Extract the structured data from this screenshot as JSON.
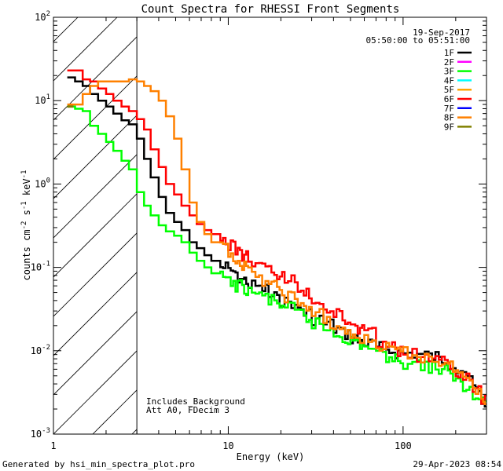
{
  "chart_data": {
    "type": "line",
    "title": "Count Spectra for RHESSI Front Segments",
    "xlabel": "Energy (keV)",
    "ylabel_parts": [
      "counts cm",
      "-2",
      " s",
      "-1",
      " keV",
      "-1"
    ],
    "xscale": "log",
    "yscale": "log",
    "xlim": [
      1,
      300
    ],
    "ylim": [
      0.001,
      100
    ],
    "xticks": [
      {
        "v": 1,
        "label": "1"
      },
      {
        "v": 10,
        "label": "10"
      },
      {
        "v": 100,
        "label": "100"
      }
    ],
    "yticks": [
      {
        "v": 0.001,
        "base": "10",
        "exp": "-3"
      },
      {
        "v": 0.01,
        "base": "10",
        "exp": "-2"
      },
      {
        "v": 0.1,
        "base": "10",
        "exp": "-1"
      },
      {
        "v": 1,
        "base": "10",
        "exp": "0"
      },
      {
        "v": 10,
        "base": "10",
        "exp": "1"
      },
      {
        "v": 100,
        "base": "10",
        "exp": "2"
      }
    ],
    "attenuator_cutoff_kev": 3,
    "date": "19-Sep-2017",
    "time_range": "05:50:00 to 05:51:00",
    "annotations": [
      "Includes_Background",
      "Att A0, FDecim 3"
    ],
    "legend": [
      {
        "name": "1F",
        "color": "#000000"
      },
      {
        "name": "2F",
        "color": "#ff00ff"
      },
      {
        "name": "3F",
        "color": "#00ff00"
      },
      {
        "name": "4F",
        "color": "#00ffff"
      },
      {
        "name": "5F",
        "color": "#ffa500"
      },
      {
        "name": "6F",
        "color": "#ff0000"
      },
      {
        "name": "7F",
        "color": "#0000ff"
      },
      {
        "name": "8F",
        "color": "#ff8000"
      },
      {
        "name": "9F",
        "color": "#808000"
      }
    ],
    "series": [
      {
        "name": "1F",
        "color": "#000000",
        "x": [
          1.2,
          1.33,
          1.47,
          1.62,
          1.8,
          2.0,
          2.2,
          2.45,
          2.7,
          3.0,
          3.3,
          3.6,
          4.0,
          4.4,
          4.9,
          5.4,
          6.0,
          6.6,
          7.3,
          8.0,
          9.0,
          10,
          11,
          12,
          13,
          15,
          17,
          19,
          21,
          24,
          27,
          30,
          35,
          40,
          45,
          50,
          55,
          60,
          70,
          80,
          90,
          100,
          120,
          140,
          160,
          180,
          200,
          220,
          250,
          280,
          300
        ],
        "y": [
          19,
          17,
          15,
          12,
          10,
          8.5,
          7,
          5.8,
          5.2,
          3.5,
          2.0,
          1.2,
          0.7,
          0.45,
          0.35,
          0.28,
          0.2,
          0.17,
          0.14,
          0.12,
          0.1,
          0.09,
          0.075,
          0.07,
          0.06,
          0.055,
          0.045,
          0.04,
          0.038,
          0.032,
          0.028,
          0.024,
          0.021,
          0.018,
          0.016,
          0.014,
          0.013,
          0.012,
          0.011,
          0.01,
          0.0095,
          0.0093,
          0.009,
          0.0085,
          0.0078,
          0.007,
          0.0058,
          0.0047,
          0.0035,
          0.0025,
          0.0022
        ]
      },
      {
        "name": "3F",
        "color": "#00ff00",
        "x": [
          1.2,
          1.33,
          1.47,
          1.62,
          1.8,
          2.0,
          2.2,
          2.45,
          2.7,
          3.0,
          3.3,
          3.6,
          4.0,
          4.4,
          4.9,
          5.4,
          6.0,
          6.6,
          7.3,
          8.0,
          9.0,
          10,
          11,
          12,
          13,
          15,
          17,
          19,
          21,
          24,
          27,
          30,
          35,
          40,
          45,
          50,
          55,
          60,
          70,
          80,
          90,
          100,
          120,
          140,
          160,
          180,
          200,
          220,
          250,
          280,
          300
        ],
        "y": [
          8.5,
          8.0,
          7.5,
          5.0,
          4.0,
          3.2,
          2.5,
          1.9,
          1.5,
          0.8,
          0.55,
          0.42,
          0.32,
          0.27,
          0.24,
          0.2,
          0.15,
          0.12,
          0.1,
          0.085,
          0.075,
          0.065,
          0.06,
          0.055,
          0.05,
          0.045,
          0.04,
          0.036,
          0.032,
          0.028,
          0.024,
          0.021,
          0.018,
          0.016,
          0.014,
          0.013,
          0.012,
          0.011,
          0.009,
          0.0085,
          0.0078,
          0.0072,
          0.0068,
          0.0063,
          0.0058,
          0.005,
          0.0043,
          0.0036,
          0.0031,
          0.0026,
          0.0023
        ]
      },
      {
        "name": "6F",
        "color": "#ff0000",
        "x": [
          1.2,
          1.33,
          1.47,
          1.62,
          1.8,
          2.0,
          2.2,
          2.45,
          2.7,
          3.0,
          3.3,
          3.6,
          4.0,
          4.4,
          4.9,
          5.4,
          6.0,
          6.6,
          7.3,
          8.0,
          9.0,
          10,
          11,
          12,
          13,
          15,
          17,
          19,
          21,
          24,
          27,
          30,
          35,
          40,
          45,
          50,
          55,
          60,
          70,
          80,
          90,
          100,
          120,
          140,
          160,
          180,
          200,
          220,
          250,
          280,
          300
        ],
        "y": [
          23,
          23,
          18,
          17,
          14,
          12,
          10,
          8.5,
          7.5,
          6.0,
          4.5,
          2.6,
          1.6,
          1.0,
          0.75,
          0.55,
          0.42,
          0.33,
          0.28,
          0.25,
          0.21,
          0.18,
          0.16,
          0.14,
          0.12,
          0.1,
          0.09,
          0.08,
          0.07,
          0.06,
          0.05,
          0.04,
          0.032,
          0.027,
          0.023,
          0.02,
          0.018,
          0.016,
          0.013,
          0.011,
          0.0098,
          0.009,
          0.0083,
          0.0078,
          0.0072,
          0.0065,
          0.0055,
          0.0045,
          0.0035,
          0.0027,
          0.0024
        ]
      },
      {
        "name": "8F",
        "color": "#ff8000",
        "x": [
          1.2,
          1.33,
          1.47,
          1.62,
          1.8,
          2.0,
          2.2,
          2.45,
          2.7,
          3.0,
          3.3,
          3.6,
          4.0,
          4.4,
          4.9,
          5.4,
          6.0,
          6.6,
          7.3,
          8.0,
          9.0,
          10,
          11,
          12,
          13,
          15,
          17,
          19,
          21,
          24,
          27,
          30,
          35,
          40,
          45,
          50,
          55,
          60,
          70,
          80,
          90,
          100,
          120,
          140,
          160,
          180,
          200,
          220,
          250,
          280,
          300
        ],
        "y": [
          9.0,
          9.0,
          12,
          15,
          17,
          17,
          17,
          17,
          18,
          17,
          15,
          13,
          10,
          6.5,
          3.5,
          1.5,
          0.6,
          0.35,
          0.25,
          0.2,
          0.17,
          0.14,
          0.12,
          0.1,
          0.085,
          0.07,
          0.06,
          0.052,
          0.045,
          0.038,
          0.032,
          0.027,
          0.022,
          0.019,
          0.017,
          0.015,
          0.014,
          0.013,
          0.0115,
          0.0105,
          0.0097,
          0.0093,
          0.0085,
          0.008,
          0.0072,
          0.0065,
          0.0055,
          0.0045,
          0.0036,
          0.0027,
          0.0024
        ]
      }
    ]
  },
  "footer": {
    "generated_by": "Generated by hsi_min_spectra_plot.pro",
    "timestamp": "29-Apr-2023 08:54"
  }
}
